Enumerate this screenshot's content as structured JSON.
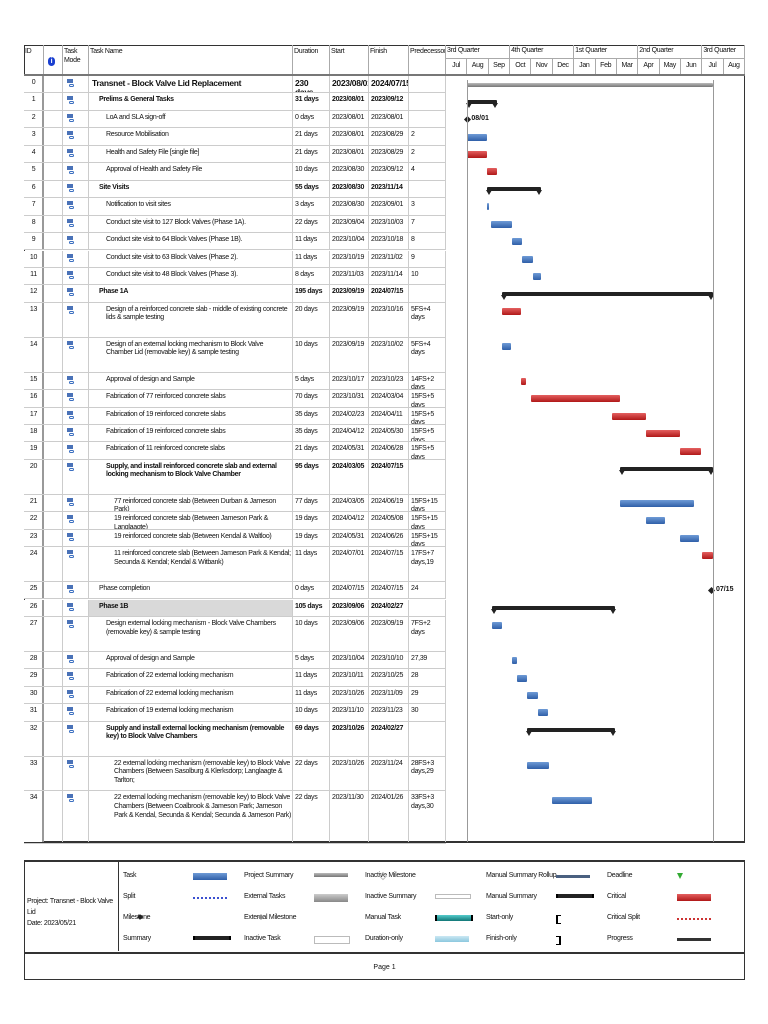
{
  "columns": {
    "id": "ID",
    "info": "i",
    "mode": "Task Mode",
    "name": "Task Name",
    "duration": "Duration",
    "start": "Start",
    "finish": "Finish",
    "pred": "Predecessors"
  },
  "timescale": {
    "quarters": [
      "3rd Quarter",
      "4th Quarter",
      "1st Quarter",
      "2nd Quarter",
      "3rd Quarter"
    ],
    "months": [
      "Jul",
      "Aug",
      "Sep",
      "Oct",
      "Nov",
      "Dec",
      "Jan",
      "Feb",
      "Mar",
      "Apr",
      "May",
      "Jun",
      "Jul",
      "Aug"
    ]
  },
  "colors": {
    "task": "#3b6fb8",
    "critical": "#c0282d",
    "summary": "#222222",
    "project_summary": "#999999"
  },
  "tasks": [
    {
      "id": "0",
      "name": "Transnet - Block Valve Lid Replacement",
      "duration": "230 days",
      "start": "2023/08/01",
      "finish": "2024/07/15",
      "pred": "",
      "level": 0,
      "type": "project",
      "lines": 1
    },
    {
      "id": "1",
      "name": "Prelims & General Tasks",
      "duration": "31 days",
      "start": "2023/08/01",
      "finish": "2023/09/12",
      "pred": "",
      "level": 1,
      "type": "summary",
      "lines": 1
    },
    {
      "id": "2",
      "name": "LoA and SLA sign-off",
      "duration": "0 days",
      "start": "2023/08/01",
      "finish": "2023/08/01",
      "pred": "",
      "level": 2,
      "type": "milestone",
      "label": "08/01",
      "lines": 1
    },
    {
      "id": "3",
      "name": "Resource Mobilisation",
      "duration": "21 days",
      "start": "2023/08/01",
      "finish": "2023/08/29",
      "pred": "2",
      "level": 2,
      "type": "task",
      "lines": 1
    },
    {
      "id": "4",
      "name": "Health and Safety File [single file]",
      "duration": "21 days",
      "start": "2023/08/01",
      "finish": "2023/08/29",
      "pred": "2",
      "level": 2,
      "type": "task",
      "critical": true,
      "lines": 1
    },
    {
      "id": "5",
      "name": "Approval of Health and Safety File",
      "duration": "10 days",
      "start": "2023/08/30",
      "finish": "2023/09/12",
      "pred": "4",
      "level": 2,
      "type": "task",
      "critical": true,
      "lines": 1
    },
    {
      "id": "6",
      "name": "Site Visits",
      "duration": "55 days",
      "start": "2023/08/30",
      "finish": "2023/11/14",
      "pred": "",
      "level": 1,
      "type": "summary",
      "lines": 1
    },
    {
      "id": "7",
      "name": "Notification to visit sites",
      "duration": "3 days",
      "start": "2023/08/30",
      "finish": "2023/09/01",
      "pred": "3",
      "level": 2,
      "type": "task",
      "lines": 1
    },
    {
      "id": "8",
      "name": "Conduct site visit to 127 Block Valves (Phase 1A).",
      "duration": "22 days",
      "start": "2023/09/04",
      "finish": "2023/10/03",
      "pred": "7",
      "level": 2,
      "type": "task",
      "lines": 1
    },
    {
      "id": "9",
      "name": "Conduct site visit to 64 Block Valves (Phase 1B).",
      "duration": "11 days",
      "start": "2023/10/04",
      "finish": "2023/10/18",
      "pred": "8",
      "level": 2,
      "type": "task",
      "lines": 1
    },
    {
      "id": "10",
      "name": "Conduct site visit to 63 Block Valves (Phase 2).",
      "duration": "11 days",
      "start": "2023/10/19",
      "finish": "2023/11/02",
      "pred": "9",
      "level": 2,
      "type": "task",
      "lines": 1
    },
    {
      "id": "11",
      "name": "Conduct site visit to 48 Block Valves (Phase 3).",
      "duration": "8 days",
      "start": "2023/11/03",
      "finish": "2023/11/14",
      "pred": "10",
      "level": 2,
      "type": "task",
      "lines": 1
    },
    {
      "id": "12",
      "name": "Phase 1A",
      "duration": "195 days",
      "start": "2023/09/19",
      "finish": "2024/07/15",
      "pred": "",
      "level": 1,
      "type": "summary",
      "lines": 1
    },
    {
      "id": "13",
      "name": "Design of a reinforced concrete slab - middle of existing concrete lids & sample testing",
      "duration": "20 days",
      "start": "2023/09/19",
      "finish": "2023/10/16",
      "pred": "5FS+4 days",
      "level": 2,
      "type": "task",
      "critical": true,
      "lines": 2
    },
    {
      "id": "14",
      "name": "Design of an external locking mechanism to Block Valve Chamber Lid (removable key) & sample testing",
      "duration": "10 days",
      "start": "2023/09/19",
      "finish": "2023/10/02",
      "pred": "5FS+4 days",
      "level": 2,
      "type": "task",
      "lines": 2
    },
    {
      "id": "15",
      "name": "Approval of design and Sample",
      "duration": "5 days",
      "start": "2023/10/17",
      "finish": "2023/10/23",
      "pred": "14FS+2 days",
      "level": 2,
      "type": "task",
      "critical": true,
      "lines": 1
    },
    {
      "id": "16",
      "name": "Fabrication of 77 reinforced concrete slabs",
      "duration": "70 days",
      "start": "2023/10/31",
      "finish": "2024/03/04",
      "pred": "15FS+5 days",
      "level": 2,
      "type": "task",
      "critical": true,
      "lines": 1
    },
    {
      "id": "17",
      "name": "Fabrication of 19 reinforced concrete slabs",
      "duration": "35 days",
      "start": "2024/02/23",
      "finish": "2024/04/11",
      "pred": "15FS+5 days",
      "level": 2,
      "type": "task",
      "critical": true,
      "lines": 1
    },
    {
      "id": "18",
      "name": "Fabrication of 19 reinforced concrete slabs",
      "duration": "35 days",
      "start": "2024/04/12",
      "finish": "2024/05/30",
      "pred": "15FS+5 days",
      "level": 2,
      "type": "task",
      "critical": true,
      "lines": 1
    },
    {
      "id": "19",
      "name": "Fabrication of 11 reinforced concrete slabs",
      "duration": "21 days",
      "start": "2024/05/31",
      "finish": "2024/06/28",
      "pred": "15FS+5 days",
      "level": 2,
      "type": "task",
      "critical": true,
      "lines": 1
    },
    {
      "id": "20",
      "name": "Supply, and install reinforced concrete slab and external locking mechanism to Block Valve Chamber",
      "duration": "95 days",
      "start": "2024/03/05",
      "finish": "2024/07/15",
      "pred": "",
      "level": 2,
      "type": "summary",
      "lines": 2
    },
    {
      "id": "21",
      "name": "77 reinforced concrete slab (Between Durban & Jameson Park)",
      "duration": "77 days",
      "start": "2024/03/05",
      "finish": "2024/06/19",
      "pred": "15FS+15 days",
      "level": 3,
      "type": "task",
      "lines": 1
    },
    {
      "id": "22",
      "name": "19 reinforced concrete slab (Between Jameson Park & Langlaagte)",
      "duration": "19 days",
      "start": "2024/04/12",
      "finish": "2024/05/08",
      "pred": "15FS+15 days",
      "level": 3,
      "type": "task",
      "lines": 1
    },
    {
      "id": "23",
      "name": "19 reinforced concrete slab (Between Kendal & Waltloo)",
      "duration": "19 days",
      "start": "2024/05/31",
      "finish": "2024/06/26",
      "pred": "15FS+15 days",
      "level": 3,
      "type": "task",
      "lines": 1
    },
    {
      "id": "24",
      "name": "11 reinforced concrete slab (Between Jameson Park & Kendal; Secunda & Kendal; Kendal & Witbank)",
      "duration": "11 days",
      "start": "2024/07/01",
      "finish": "2024/07/15",
      "pred": "17FS+7 days,19",
      "level": 3,
      "type": "task",
      "critical": true,
      "lines": 2
    },
    {
      "id": "25",
      "name": "Phase completion",
      "duration": "0 days",
      "start": "2024/07/15",
      "finish": "2024/07/15",
      "pred": "24",
      "level": 1,
      "type": "milestone",
      "label": "07/15",
      "lines": 1,
      "plain": true
    },
    {
      "id": "26",
      "name": "Phase 1B",
      "duration": "105 days",
      "start": "2023/09/06",
      "finish": "2024/02/27",
      "pred": "",
      "level": 1,
      "type": "summary",
      "lines": 1,
      "highlight": true
    },
    {
      "id": "27",
      "name": "Design external locking mechanism - Block Valve Chambers (removable key) & sample testing",
      "duration": "10 days",
      "start": "2023/09/06",
      "finish": "2023/09/19",
      "pred": "7FS+2 days",
      "level": 2,
      "type": "task",
      "lines": 2
    },
    {
      "id": "28",
      "name": "Approval of design and Sample",
      "duration": "5 days",
      "start": "2023/10/04",
      "finish": "2023/10/10",
      "pred": "27,39",
      "level": 2,
      "type": "task",
      "lines": 1
    },
    {
      "id": "29",
      "name": "Fabrication of 22 external locking mechanism",
      "duration": "11 days",
      "start": "2023/10/11",
      "finish": "2023/10/25",
      "pred": "28",
      "level": 2,
      "type": "task",
      "lines": 1
    },
    {
      "id": "30",
      "name": "Fabrication of 22 external locking mechanism",
      "duration": "11 days",
      "start": "2023/10/26",
      "finish": "2023/11/09",
      "pred": "29",
      "level": 2,
      "type": "task",
      "lines": 1
    },
    {
      "id": "31",
      "name": "Fabrication of 19 external locking mechanism",
      "duration": "10 days",
      "start": "2023/11/10",
      "finish": "2023/11/23",
      "pred": "30",
      "level": 2,
      "type": "task",
      "lines": 1
    },
    {
      "id": "32",
      "name": "Supply and install external locking mechanism (removable key) to Block Valve Chambers",
      "duration": "69 days",
      "start": "2023/10/26",
      "finish": "2024/02/27",
      "pred": "",
      "level": 2,
      "type": "summary",
      "lines": 2
    },
    {
      "id": "33",
      "name": "22 external locking mechanism (removable key) to Block Valve Chambers (Between Sasolburg & Klerksdorp; Langlaagte & Tarlton;",
      "duration": "22 days",
      "start": "2023/10/26",
      "finish": "2023/11/24",
      "pred": "28FS+3 days,29",
      "level": 3,
      "type": "task",
      "lines": 2
    },
    {
      "id": "34",
      "name": "22 external locking mechanism (removable key) to Block Valve Chambers (Between Coalbrook & Jameson Park; Jameson Park & Kendal, Secunda & Kendal; Secunda & Jameson Park)",
      "duration": "22 days",
      "start": "2023/11/30",
      "finish": "2024/01/26",
      "pred": "33FS+3 days,30",
      "level": 3,
      "type": "task",
      "lines": 3
    }
  ],
  "legend": {
    "project": "Project: Transnet - Block Valve Lid",
    "date": "Date: 2023/05/21",
    "items": [
      {
        "label": "Task",
        "swatch": "task"
      },
      {
        "label": "Split",
        "swatch": "split"
      },
      {
        "label": "Milestone",
        "swatch": "milestone"
      },
      {
        "label": "Summary",
        "swatch": "summary"
      },
      {
        "label": "Project Summary",
        "swatch": "project"
      },
      {
        "label": "External Tasks",
        "swatch": "external"
      },
      {
        "label": "External Milestone",
        "swatch": "extms"
      },
      {
        "label": "Inactive Task",
        "swatch": "inactive"
      },
      {
        "label": "Inactive Milestone",
        "swatch": "inactms"
      },
      {
        "label": "Inactive Summary",
        "swatch": "inactsum"
      },
      {
        "label": "Manual Task",
        "swatch": "manual"
      },
      {
        "label": "Duration-only",
        "swatch": "duration"
      },
      {
        "label": "Manual Summary Rollup",
        "swatch": "rollup"
      },
      {
        "label": "Manual Summary",
        "swatch": "summary"
      },
      {
        "label": "Start-only",
        "swatch": "startonly"
      },
      {
        "label": "Finish-only",
        "swatch": "finishonly"
      },
      {
        "label": "Deadline",
        "swatch": "deadline"
      },
      {
        "label": "Critical",
        "swatch": "crit"
      },
      {
        "label": "Critical Split",
        "swatch": "critsplit"
      },
      {
        "label": "Progress",
        "swatch": "progress"
      }
    ]
  },
  "footer": {
    "page": "Page 1"
  }
}
